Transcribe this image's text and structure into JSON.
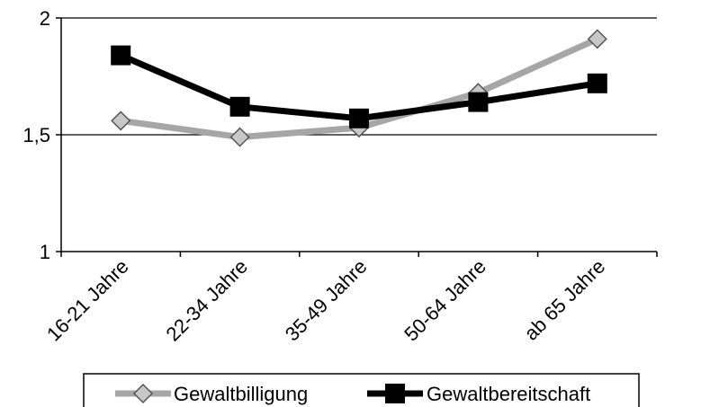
{
  "chart_data": {
    "type": "line",
    "categories": [
      "16-21 Jahre",
      "22-34 Jahre",
      "35-49 Jahre",
      "50-64 Jahre",
      "ab 65 Jahre"
    ],
    "ylim": [
      1,
      2
    ],
    "yticks": [
      1,
      1.5,
      2
    ],
    "ytick_labels": [
      "1",
      "1,5",
      "2"
    ],
    "grid": "horizontal",
    "legend": "bottom",
    "series": [
      {
        "name": "Gewaltbilligung",
        "values": [
          1.56,
          1.49,
          1.53,
          1.68,
          1.91
        ],
        "color": "#a6a6a6",
        "marker": "diamond"
      },
      {
        "name": "Gewaltbereitschaft",
        "values": [
          1.84,
          1.62,
          1.57,
          1.64,
          1.72
        ],
        "color": "#000000",
        "marker": "square"
      }
    ]
  }
}
